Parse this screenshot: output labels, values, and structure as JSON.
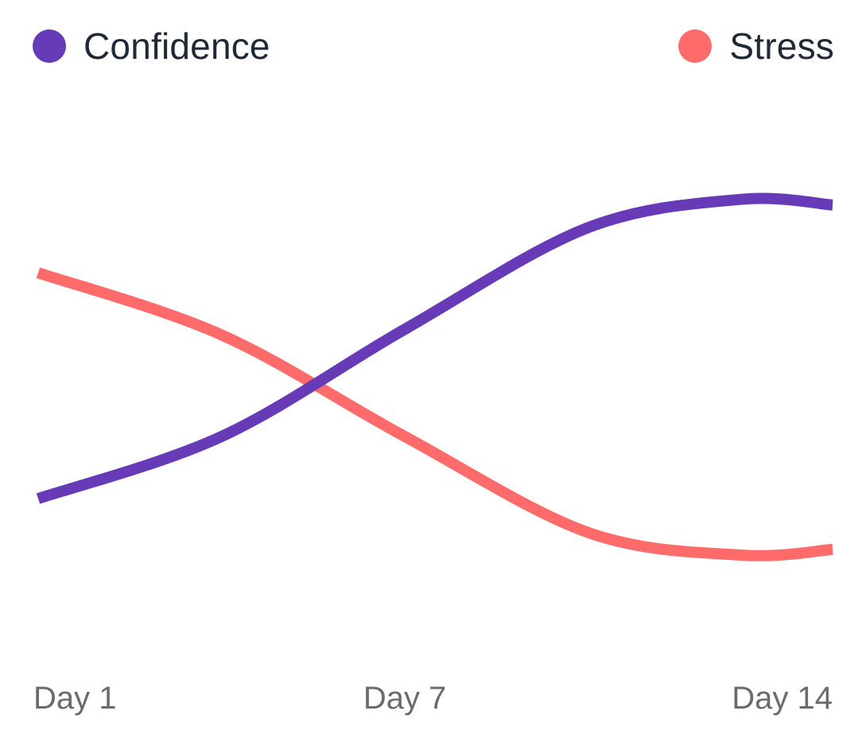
{
  "chart_data": {
    "type": "line",
    "title": "",
    "xlabel": "",
    "ylabel": "",
    "categories": [
      "Day 1",
      "Day 7",
      "Day 14"
    ],
    "x_range": [
      1,
      14
    ],
    "y_range": [
      0,
      100
    ],
    "grid": false,
    "legend_position": "top",
    "series": [
      {
        "name": "Confidence",
        "color": "#673AB7",
        "x": [
          1,
          4,
          7,
          10,
          12.5,
          14
        ],
        "y": [
          30,
          41,
          60,
          78,
          83,
          82
        ]
      },
      {
        "name": "Stress",
        "color": "#FF6B6B",
        "x": [
          1,
          4,
          7,
          10,
          12.5,
          14
        ],
        "y": [
          70,
          59,
          41,
          24,
          20,
          21
        ]
      }
    ]
  }
}
